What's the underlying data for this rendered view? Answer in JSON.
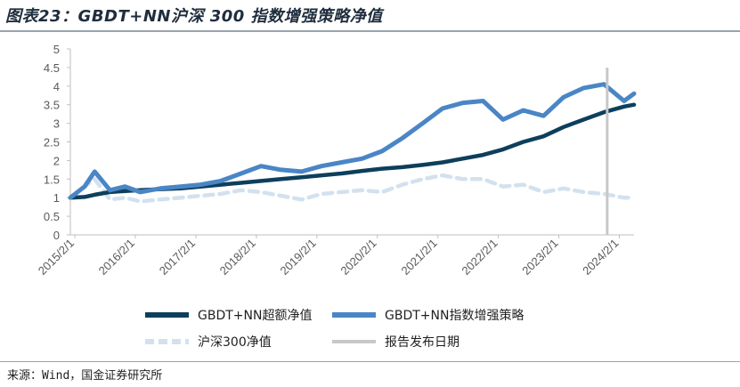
{
  "title": "图表23：GBDT+NN沪深 300 指数增强策略净值",
  "source": "来源：Wind，国金证券研究所",
  "chart_data": {
    "type": "line",
    "title": "图表23：GBDT+NN沪深 300 指数增强策略净值",
    "xlabel": "",
    "ylabel": "",
    "ylim": [
      0,
      5
    ],
    "yticks": [
      "0",
      "0.5",
      "1",
      "1.5",
      "2",
      "2.5",
      "3",
      "3.5",
      "4",
      "4.5",
      "5"
    ],
    "xticks": [
      "2015/2/1",
      "2016/2/1",
      "2017/2/1",
      "2018/2/1",
      "2019/2/1",
      "2020/2/1",
      "2021/2/1",
      "2022/2/1",
      "2023/2/1",
      "2024/2/1"
    ],
    "grid": false,
    "legend_position": "bottom",
    "x_dates": [
      "2015/1/5",
      "2015/4/1",
      "2015/6/1",
      "2015/9/1",
      "2015/12/1",
      "2016/3/1",
      "2016/7/1",
      "2016/11/1",
      "2017/3/1",
      "2017/7/1",
      "2017/11/1",
      "2018/3/1",
      "2018/7/1",
      "2018/11/1",
      "2019/3/1",
      "2019/7/1",
      "2019/11/1",
      "2020/3/1",
      "2020/7/1",
      "2020/11/1",
      "2021/3/1",
      "2021/7/1",
      "2021/11/1",
      "2022/3/1",
      "2022/7/1",
      "2022/11/1",
      "2023/3/1",
      "2023/7/1",
      "2023/11/1",
      "2024/3/1",
      "2024/4/30"
    ],
    "series": [
      {
        "name": "GBDT+NN超额净值",
        "color": "#0d3f5c",
        "style": "solid-thick",
        "values": [
          1.0,
          1.02,
          1.08,
          1.15,
          1.18,
          1.2,
          1.23,
          1.25,
          1.3,
          1.35,
          1.4,
          1.45,
          1.5,
          1.55,
          1.6,
          1.65,
          1.72,
          1.78,
          1.82,
          1.88,
          1.95,
          2.05,
          2.15,
          2.3,
          2.5,
          2.65,
          2.9,
          3.1,
          3.3,
          3.45,
          3.5
        ]
      },
      {
        "name": "GBDT+NN指数增强策略",
        "color": "#4a86c5",
        "style": "solid-thick",
        "values": [
          1.0,
          1.3,
          1.7,
          1.2,
          1.3,
          1.15,
          1.25,
          1.3,
          1.35,
          1.45,
          1.65,
          1.85,
          1.75,
          1.7,
          1.85,
          1.95,
          2.05,
          2.25,
          2.6,
          3.0,
          3.4,
          3.55,
          3.6,
          3.1,
          3.35,
          3.2,
          3.7,
          3.95,
          4.05,
          3.6,
          3.8
        ]
      },
      {
        "name": "沪深300净值",
        "color": "#d3e1ef",
        "style": "dashed-thick",
        "values": [
          1.0,
          1.3,
          1.5,
          0.95,
          1.0,
          0.9,
          0.95,
          1.0,
          1.05,
          1.1,
          1.2,
          1.15,
          1.05,
          0.95,
          1.1,
          1.15,
          1.2,
          1.15,
          1.35,
          1.5,
          1.6,
          1.5,
          1.5,
          1.3,
          1.35,
          1.15,
          1.25,
          1.15,
          1.1,
          1.0,
          1.0
        ]
      }
    ],
    "annotation": {
      "name": "报告发布日期",
      "date": "2023/11/20",
      "color": "#c8c8c8"
    }
  }
}
